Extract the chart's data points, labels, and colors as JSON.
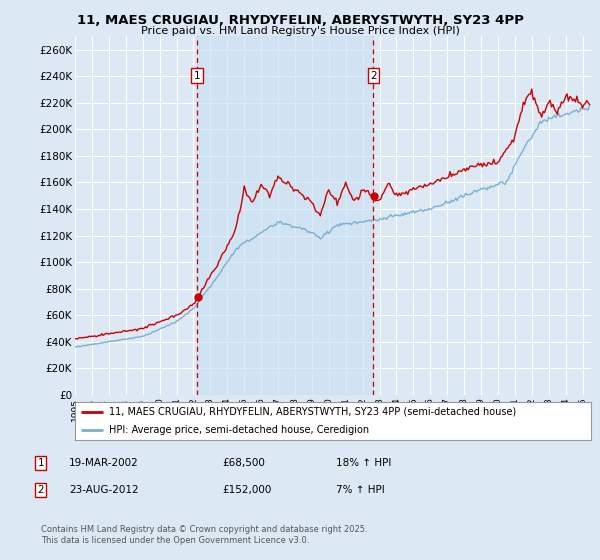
{
  "title": "11, MAES CRUGIAU, RHYDYFELIN, ABERYSTWYTH, SY23 4PP",
  "subtitle": "Price paid vs. HM Land Registry's House Price Index (HPI)",
  "background_color": "#dce9f5",
  "plot_bg_color": "#dce9f5",
  "grid_color": "#ffffff",
  "ylim": [
    0,
    270000
  ],
  "yticks": [
    0,
    20000,
    40000,
    60000,
    80000,
    100000,
    120000,
    140000,
    160000,
    180000,
    200000,
    220000,
    240000,
    260000
  ],
  "ytick_labels": [
    "£0",
    "£20K",
    "£40K",
    "£60K",
    "£80K",
    "£100K",
    "£120K",
    "£140K",
    "£160K",
    "£180K",
    "£200K",
    "£220K",
    "£240K",
    "£260K"
  ],
  "sale1_date": 2002.21,
  "sale1_price": 68500,
  "sale2_date": 2012.64,
  "sale2_price": 152000,
  "legend_line1": "11, MAES CRUGIAU, RHYDYFELIN, ABERYSTWYTH, SY23 4PP (semi-detached house)",
  "legend_line2": "HPI: Average price, semi-detached house, Ceredigion",
  "footer": "Contains HM Land Registry data © Crown copyright and database right 2025.\nThis data is licensed under the Open Government Licence v3.0.",
  "red_color": "#cc0000",
  "blue_color": "#7ab0d4",
  "blue_fill": "#c8dff0",
  "xmin": 1995.0,
  "xmax": 2025.5
}
